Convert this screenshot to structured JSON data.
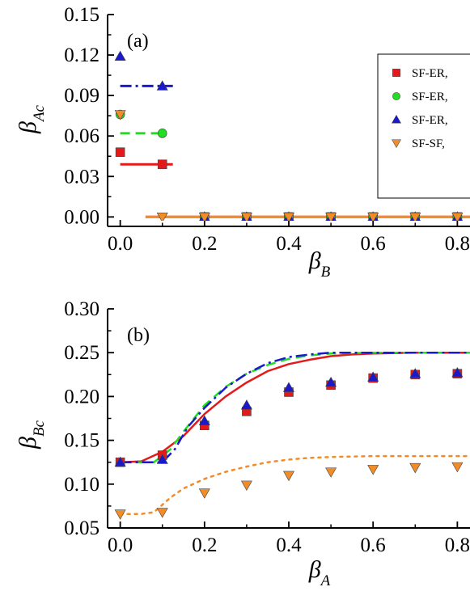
{
  "chart_data": [
    {
      "type": "scatter",
      "panel_label": "(a)",
      "xlabel": {
        "symbol": "β",
        "subscript": "B"
      },
      "ylabel": {
        "symbol": "β",
        "subscript": "Ac"
      },
      "xlim": [
        -0.03,
        0.83
      ],
      "ylim": [
        -0.007,
        0.15
      ],
      "xticks": [
        {
          "v": 0.0,
          "label": "0.0"
        },
        {
          "v": 0.2,
          "label": "0.2"
        },
        {
          "v": 0.4,
          "label": "0.4"
        },
        {
          "v": 0.6,
          "label": "0.6"
        },
        {
          "v": 0.8,
          "label": "0.8"
        }
      ],
      "yticks": [
        {
          "v": 0.0,
          "label": "0.00"
        },
        {
          "v": 0.03,
          "label": "0.03"
        },
        {
          "v": 0.06,
          "label": "0.06"
        },
        {
          "v": 0.09,
          "label": "0.09"
        },
        {
          "v": 0.12,
          "label": "0.12"
        },
        {
          "v": 0.15,
          "label": "0.15"
        }
      ],
      "legend": {
        "position": "top-right",
        "entries": [
          "SF-ER,",
          "SF-ER,",
          "SF-ER,",
          "SF-SF,"
        ]
      },
      "series": [
        {
          "name": "SF-ER,",
          "marker": "square",
          "color": "#e31a1c",
          "points": [
            [
              0.0,
              0.048
            ],
            [
              0.1,
              0.039
            ],
            [
              0.2,
              0.0
            ],
            [
              0.3,
              0.0
            ],
            [
              0.4,
              0.0
            ],
            [
              0.5,
              0.0
            ],
            [
              0.6,
              0.0
            ],
            [
              0.7,
              0.0
            ],
            [
              0.8,
              0.0
            ]
          ],
          "line": {
            "style": "solid",
            "width": 3,
            "segments": [
              [
                [
                  0.0,
                  0.039
                ],
                [
                  0.125,
                  0.039
                ]
              ],
              [
                [
                  0.06,
                  0.0
                ],
                [
                  0.83,
                  0.0
                ]
              ]
            ]
          }
        },
        {
          "name": "SF-ER,",
          "marker": "circle",
          "color": "#22dd22",
          "points": [
            [
              0.0,
              0.076
            ],
            [
              0.1,
              0.062
            ],
            [
              0.2,
              0.0
            ],
            [
              0.3,
              0.0
            ],
            [
              0.4,
              0.0
            ],
            [
              0.5,
              0.0
            ],
            [
              0.6,
              0.0
            ],
            [
              0.7,
              0.0
            ],
            [
              0.8,
              0.0
            ]
          ],
          "line": {
            "style": "dash",
            "width": 3,
            "segments": [
              [
                [
                  0.0,
                  0.062
                ],
                [
                  0.1,
                  0.062
                ]
              ]
            ]
          }
        },
        {
          "name": "SF-ER,",
          "marker": "triangle-up",
          "color": "#1a1acc",
          "points": [
            [
              0.0,
              0.119
            ],
            [
              0.1,
              0.097
            ],
            [
              0.2,
              0.0
            ],
            [
              0.3,
              0.0
            ],
            [
              0.4,
              0.0
            ],
            [
              0.5,
              0.0
            ],
            [
              0.6,
              0.0
            ],
            [
              0.7,
              0.0
            ],
            [
              0.8,
              0.0
            ]
          ],
          "line": {
            "style": "dashdot",
            "width": 3,
            "segments": [
              [
                [
                  0.0,
                  0.097
                ],
                [
                  0.125,
                  0.097
                ]
              ]
            ]
          }
        },
        {
          "name": "SF-SF,",
          "marker": "triangle-down",
          "color": "#f28c28",
          "points": [
            [
              0.0,
              0.076
            ],
            [
              0.1,
              0.0
            ],
            [
              0.2,
              0.0
            ],
            [
              0.3,
              0.0
            ],
            [
              0.4,
              0.0
            ],
            [
              0.5,
              0.0
            ],
            [
              0.6,
              0.0
            ],
            [
              0.7,
              0.0
            ],
            [
              0.8,
              0.0
            ]
          ],
          "line": {
            "style": "solid",
            "width": 3,
            "segments": [
              [
                [
                  0.06,
                  0.0
                ],
                [
                  0.83,
                  0.0
                ]
              ]
            ]
          }
        }
      ]
    },
    {
      "type": "scatter",
      "panel_label": "(b)",
      "xlabel": {
        "symbol": "β",
        "subscript": "A"
      },
      "ylabel": {
        "symbol": "β",
        "subscript": "Bc"
      },
      "xlim": [
        -0.03,
        0.83
      ],
      "ylim": [
        0.05,
        0.3
      ],
      "xticks": [
        {
          "v": 0.0,
          "label": "0.0"
        },
        {
          "v": 0.2,
          "label": "0.2"
        },
        {
          "v": 0.4,
          "label": "0.4"
        },
        {
          "v": 0.6,
          "label": "0.6"
        },
        {
          "v": 0.8,
          "label": "0.8"
        }
      ],
      "yticks": [
        {
          "v": 0.05,
          "label": "0.05"
        },
        {
          "v": 0.1,
          "label": "0.10"
        },
        {
          "v": 0.15,
          "label": "0.15"
        },
        {
          "v": 0.2,
          "label": "0.20"
        },
        {
          "v": 0.25,
          "label": "0.25"
        },
        {
          "v": 0.3,
          "label": "0.30"
        }
      ],
      "series": [
        {
          "name": "SF-ER,",
          "marker": "square",
          "color": "#e31a1c",
          "points": [
            [
              0.0,
              0.125
            ],
            [
              0.1,
              0.133
            ],
            [
              0.2,
              0.167
            ],
            [
              0.3,
              0.183
            ],
            [
              0.4,
              0.205
            ],
            [
              0.5,
              0.213
            ],
            [
              0.6,
              0.221
            ],
            [
              0.7,
              0.225
            ],
            [
              0.8,
              0.226
            ]
          ],
          "line": {
            "style": "solid",
            "width": 2.5,
            "segments": [
              [
                [
                  0.0,
                  0.125
                ],
                [
                  0.05,
                  0.126
                ],
                [
                  0.1,
                  0.137
                ],
                [
                  0.15,
                  0.155
                ],
                [
                  0.2,
                  0.18
                ],
                [
                  0.25,
                  0.2
                ],
                [
                  0.3,
                  0.216
                ],
                [
                  0.35,
                  0.229
                ],
                [
                  0.4,
                  0.237
                ],
                [
                  0.45,
                  0.242
                ],
                [
                  0.5,
                  0.246
                ],
                [
                  0.55,
                  0.248
                ],
                [
                  0.6,
                  0.249
                ],
                [
                  0.7,
                  0.25
                ],
                [
                  0.83,
                  0.25
                ]
              ]
            ]
          }
        },
        {
          "name": "SF-ER,",
          "marker": "circle",
          "color": "#22dd22",
          "points": [],
          "line": {
            "style": "dash",
            "width": 2.5,
            "segments": [
              [
                [
                  0.0,
                  0.125
                ],
                [
                  0.08,
                  0.125
                ],
                [
                  0.12,
                  0.14
                ],
                [
                  0.15,
                  0.16
                ],
                [
                  0.2,
                  0.19
                ],
                [
                  0.25,
                  0.211
                ],
                [
                  0.3,
                  0.226
                ],
                [
                  0.35,
                  0.236
                ],
                [
                  0.4,
                  0.243
                ],
                [
                  0.45,
                  0.247
                ],
                [
                  0.5,
                  0.249
                ],
                [
                  0.6,
                  0.25
                ],
                [
                  0.83,
                  0.25
                ]
              ]
            ]
          }
        },
        {
          "name": "SF-ER,",
          "marker": "triangle-up",
          "color": "#1a1acc",
          "points": [
            [
              0.0,
              0.125
            ],
            [
              0.1,
              0.128
            ],
            [
              0.2,
              0.172
            ],
            [
              0.3,
              0.19
            ],
            [
              0.4,
              0.21
            ],
            [
              0.5,
              0.216
            ],
            [
              0.6,
              0.222
            ],
            [
              0.7,
              0.226
            ],
            [
              0.8,
              0.227
            ]
          ],
          "line": {
            "style": "dashdot",
            "width": 2.5,
            "segments": [
              [
                [
                  0.0,
                  0.125
                ],
                [
                  0.1,
                  0.125
                ],
                [
                  0.13,
                  0.14
                ],
                [
                  0.16,
                  0.165
                ],
                [
                  0.2,
                  0.187
                ],
                [
                  0.25,
                  0.21
                ],
                [
                  0.3,
                  0.226
                ],
                [
                  0.35,
                  0.238
                ],
                [
                  0.4,
                  0.245
                ],
                [
                  0.45,
                  0.248
                ],
                [
                  0.5,
                  0.25
                ],
                [
                  0.83,
                  0.25
                ]
              ]
            ]
          }
        },
        {
          "name": "SF-SF,",
          "marker": "triangle-down",
          "color": "#f28c28",
          "points": [
            [
              0.0,
              0.066
            ],
            [
              0.1,
              0.068
            ],
            [
              0.2,
              0.09
            ],
            [
              0.3,
              0.099
            ],
            [
              0.4,
              0.11
            ],
            [
              0.5,
              0.114
            ],
            [
              0.6,
              0.117
            ],
            [
              0.7,
              0.119
            ],
            [
              0.8,
              0.12
            ]
          ],
          "line": {
            "style": "dot",
            "width": 2.5,
            "segments": [
              [
                [
                  0.0,
                  0.066
                ],
                [
                  0.05,
                  0.066
                ],
                [
                  0.08,
                  0.068
                ],
                [
                  0.12,
                  0.085
                ],
                [
                  0.15,
                  0.095
                ],
                [
                  0.2,
                  0.106
                ],
                [
                  0.25,
                  0.114
                ],
                [
                  0.3,
                  0.12
                ],
                [
                  0.35,
                  0.125
                ],
                [
                  0.4,
                  0.128
                ],
                [
                  0.45,
                  0.13
                ],
                [
                  0.5,
                  0.131
                ],
                [
                  0.6,
                  0.132
                ],
                [
                  0.83,
                  0.132
                ]
              ]
            ]
          }
        }
      ]
    }
  ]
}
